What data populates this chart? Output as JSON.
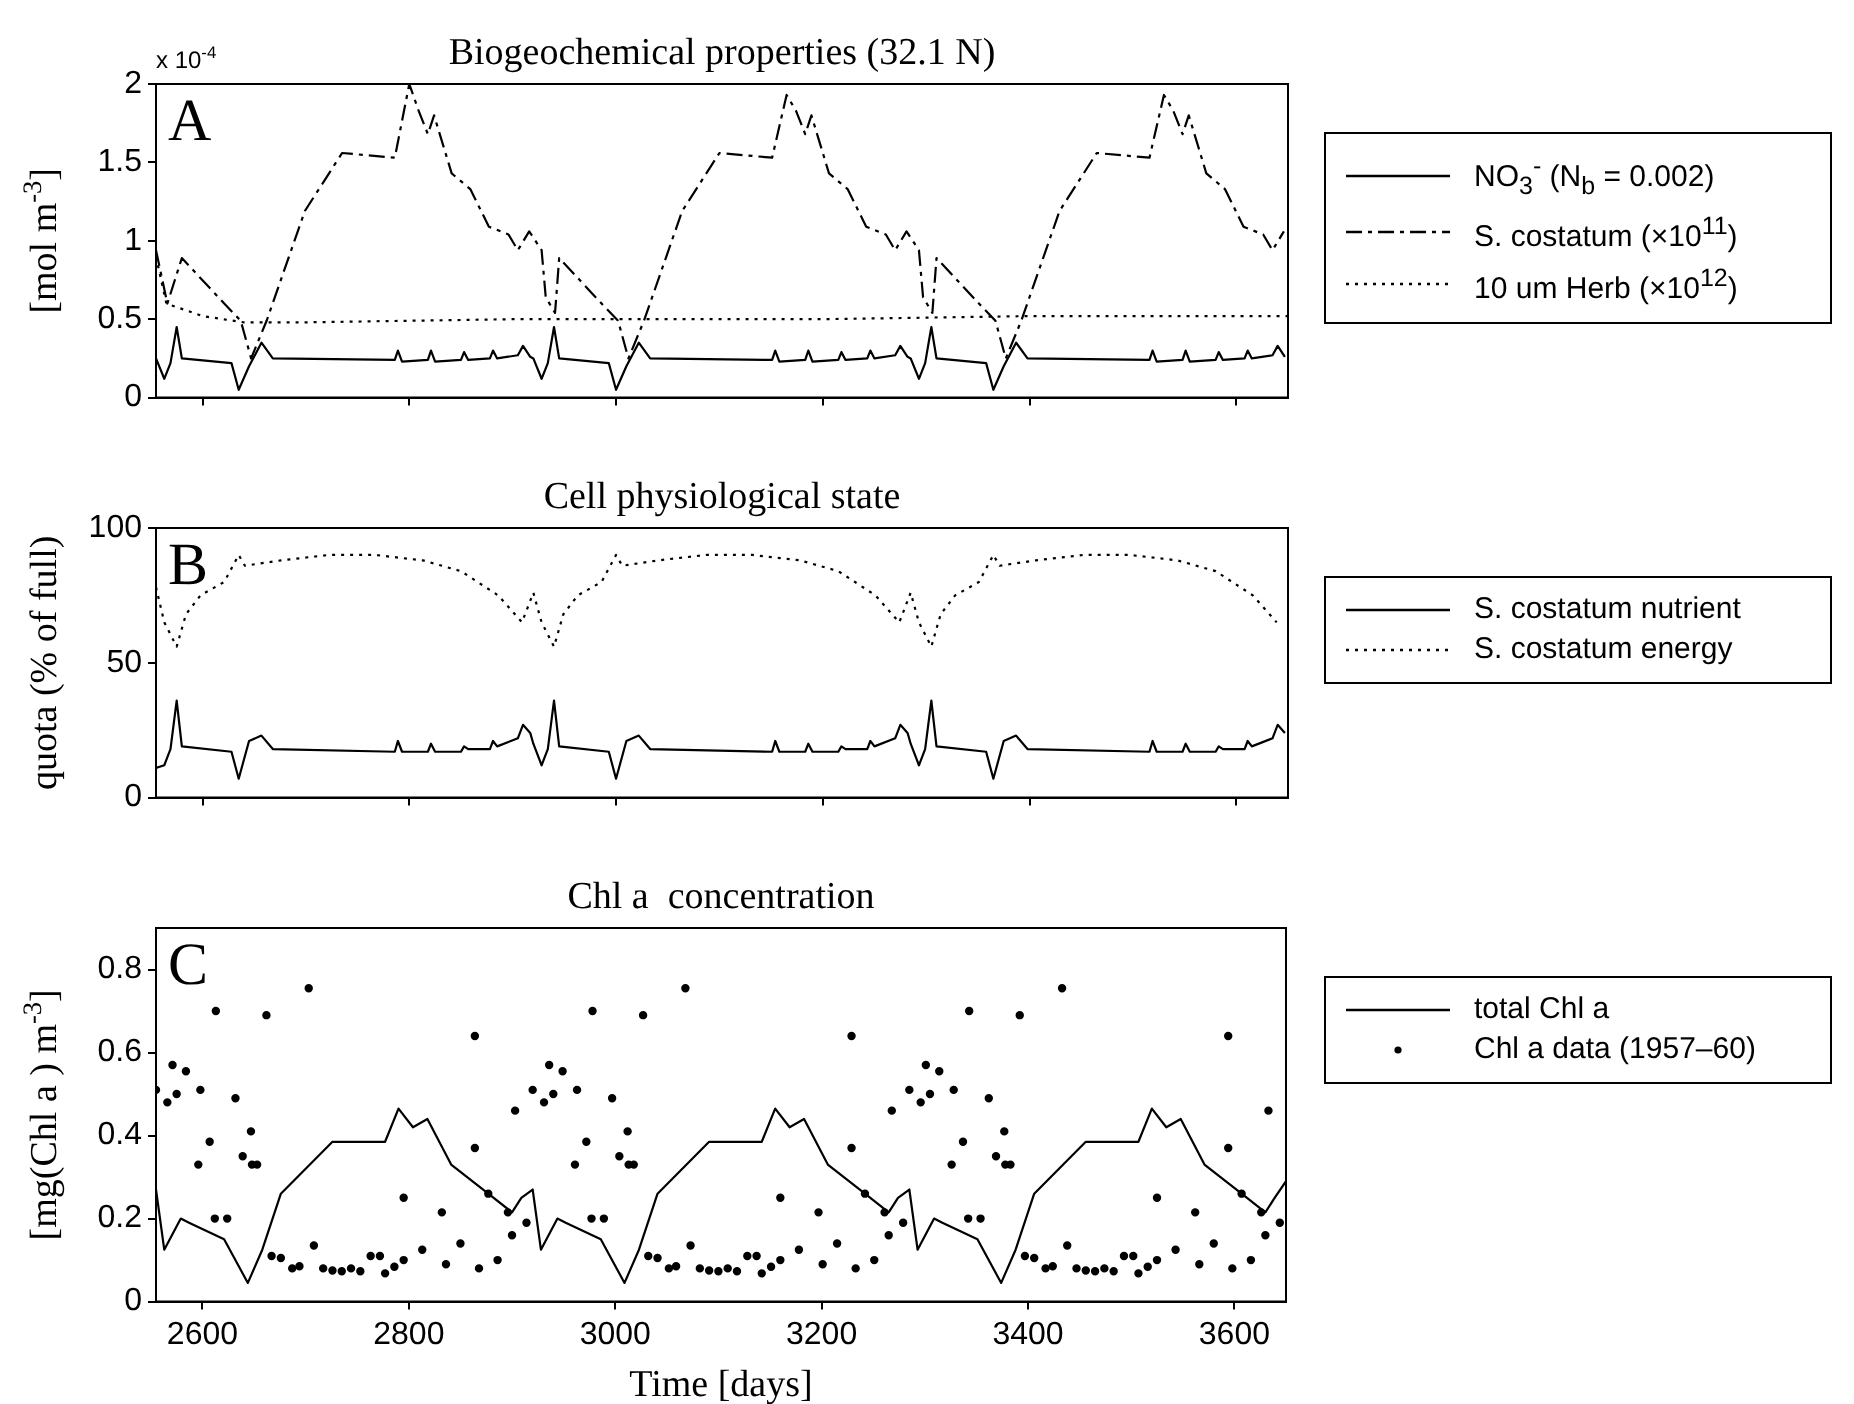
{
  "chart_data": [
    {
      "type": "line",
      "title": "Biogeochemical properties (32.1 N)",
      "ylabel": "[mol m$^{-3}$]",
      "annotations": [
        "A",
        "x 10$^{-4}$"
      ],
      "xlim": [
        2555,
        3650
      ],
      "xticks": [
        2600,
        2800,
        3000,
        3200,
        3400,
        3600
      ],
      "ylim": [
        0,
        2
      ],
      "yticks": [
        0,
        0.5,
        1,
        1.5,
        2
      ],
      "tick_labels": "y",
      "grid": false,
      "legend": "right",
      "series": [
        {
          "name": "NO$_{3}$$^{-}$ (N$_{b}$ = 0.002)",
          "color": "#000000",
          "line_style": "solid",
          "marker": "none",
          "x": [
            2555,
            2563,
            2569,
            2575,
            2580,
            2628,
            2635,
            2645,
            2657,
            2668,
            2786,
            2789,
            2793,
            2818,
            2821,
            2825,
            2850,
            2853,
            2857,
            2878,
            2881,
            2885,
            2905,
            2910,
            2917,
            2920,
            2928,
            2934,
            2940,
            2945,
            2993,
            3000,
            3010,
            3022,
            3033,
            3151,
            3154,
            3158,
            3183,
            3186,
            3190,
            3215,
            3218,
            3222,
            3243,
            3246,
            3250,
            3270,
            3275,
            3282,
            3285,
            3293,
            3299,
            3305,
            3310,
            3358,
            3365,
            3375,
            3387,
            3398,
            3516,
            3519,
            3523,
            3548,
            3551,
            3555,
            3580,
            3583,
            3587,
            3608,
            3611,
            3615,
            3635,
            3640,
            3647
          ],
          "values": [
            0.25,
            0.12,
            0.22,
            0.45,
            0.25,
            0.22,
            0.05,
            0.2,
            0.35,
            0.25,
            0.24,
            0.3,
            0.23,
            0.24,
            0.3,
            0.23,
            0.24,
            0.29,
            0.24,
            0.25,
            0.3,
            0.25,
            0.27,
            0.33,
            0.26,
            0.25,
            0.12,
            0.22,
            0.45,
            0.25,
            0.22,
            0.05,
            0.2,
            0.35,
            0.25,
            0.24,
            0.3,
            0.23,
            0.24,
            0.3,
            0.23,
            0.24,
            0.29,
            0.24,
            0.25,
            0.3,
            0.25,
            0.27,
            0.33,
            0.26,
            0.25,
            0.12,
            0.22,
            0.45,
            0.25,
            0.22,
            0.05,
            0.2,
            0.35,
            0.25,
            0.24,
            0.3,
            0.23,
            0.24,
            0.3,
            0.23,
            0.24,
            0.29,
            0.24,
            0.25,
            0.3,
            0.25,
            0.27,
            0.33,
            0.26
          ]
        },
        {
          "name": "S. costatum (×10$^{11}$)",
          "color": "#000000",
          "line_style": "dashed",
          "marker": "none",
          "x": [
            2555,
            2566,
            2580,
            2621,
            2637,
            2647,
            2662,
            2699,
            2735,
            2786,
            2800,
            2809,
            2818,
            2824,
            2841,
            2859,
            2877,
            2896,
            2905,
            2916,
            2928,
            2932,
            2941,
            2945,
            2986,
            3002,
            3012,
            3027,
            3064,
            3100,
            3151,
            3165,
            3174,
            3183,
            3189,
            3206,
            3224,
            3242,
            3261,
            3270,
            3281,
            3293,
            3297,
            3306,
            3310,
            3351,
            3367,
            3377,
            3392,
            3429,
            3465,
            3516,
            3530,
            3539,
            3548,
            3554,
            3571,
            3589,
            3607,
            3626,
            3635,
            3646
          ],
          "values": [
            0.94,
            0.6,
            0.89,
            0.6,
            0.49,
            0.25,
            0.49,
            1.19,
            1.56,
            1.53,
            2.0,
            1.83,
            1.68,
            1.8,
            1.43,
            1.33,
            1.09,
            1.04,
            0.94,
            1.06,
            0.94,
            0.64,
            0.54,
            0.89,
            0.6,
            0.49,
            0.25,
            0.49,
            1.19,
            1.56,
            1.53,
            1.93,
            1.83,
            1.68,
            1.8,
            1.43,
            1.33,
            1.09,
            1.04,
            0.94,
            1.06,
            0.94,
            0.64,
            0.54,
            0.89,
            0.6,
            0.49,
            0.25,
            0.49,
            1.19,
            1.56,
            1.53,
            1.93,
            1.83,
            1.68,
            1.8,
            1.43,
            1.33,
            1.09,
            1.04,
            0.94,
            1.06
          ]
        },
        {
          "name": "10 um Herb (×10$^{12}$)",
          "color": "#000000",
          "line_style": "dotted",
          "marker": "none",
          "x": [
            2555,
            2565,
            2600,
            2640,
            2700,
            2900,
            3200,
            3400,
            3650
          ],
          "values": [
            0.9,
            0.6,
            0.52,
            0.48,
            0.48,
            0.5,
            0.5,
            0.52,
            0.52
          ]
        }
      ]
    },
    {
      "type": "line",
      "title": "Cell physiological state",
      "ylabel": "quota (% of full)",
      "annotations": [
        "B"
      ],
      "xlim": [
        2555,
        3650
      ],
      "xticks": [
        2600,
        2800,
        3000,
        3200,
        3400,
        3600
      ],
      "ylim": [
        0,
        100
      ],
      "yticks": [
        0,
        50,
        100
      ],
      "tick_labels": "y",
      "grid": false,
      "legend": "right",
      "series": [
        {
          "name": "S. costatum nutrient",
          "color": "#000000",
          "line_style": "solid",
          "marker": "none",
          "x": [
            2555,
            2563,
            2569,
            2575,
            2580,
            2628,
            2635,
            2645,
            2657,
            2668,
            2786,
            2789,
            2793,
            2818,
            2821,
            2825,
            2850,
            2853,
            2857,
            2878,
            2881,
            2885,
            2905,
            2910,
            2917,
            2920,
            2928,
            2934,
            2940,
            2945,
            2993,
            3000,
            3010,
            3022,
            3033,
            3151,
            3154,
            3158,
            3183,
            3186,
            3190,
            3215,
            3218,
            3222,
            3243,
            3246,
            3250,
            3270,
            3275,
            3282,
            3285,
            3293,
            3299,
            3305,
            3310,
            3358,
            3365,
            3375,
            3387,
            3398,
            3516,
            3519,
            3523,
            3548,
            3551,
            3555,
            3580,
            3583,
            3587,
            3608,
            3611,
            3615,
            3635,
            3640,
            3647
          ],
          "values": [
            11,
            12,
            18,
            36,
            19,
            17,
            7,
            21,
            23,
            18,
            17,
            21,
            17,
            17,
            20,
            17,
            17,
            19,
            18,
            18,
            21,
            19,
            22,
            27,
            24,
            20,
            12,
            18,
            36,
            19,
            17,
            7,
            21,
            23,
            18,
            17,
            21,
            17,
            17,
            20,
            17,
            17,
            19,
            18,
            18,
            21,
            19,
            22,
            27,
            24,
            20,
            12,
            18,
            36,
            19,
            17,
            7,
            21,
            23,
            18,
            17,
            21,
            17,
            17,
            20,
            17,
            17,
            19,
            18,
            18,
            21,
            19,
            22,
            27,
            24
          ]
        },
        {
          "name": "S. costatum energy",
          "color": "#000000",
          "line_style": "dotted",
          "marker": "none",
          "x": [
            2555,
            2563,
            2575,
            2584,
            2598,
            2621,
            2635,
            2641,
            2676,
            2722,
            2767,
            2813,
            2850,
            2886,
            2909,
            2920,
            2928,
            2940,
            2949,
            2963,
            2986,
            3000,
            3006,
            3041,
            3087,
            3132,
            3178,
            3215,
            3251,
            3274,
            3285,
            3293,
            3305,
            3314,
            3328,
            3351,
            3365,
            3371,
            3406,
            3452,
            3497,
            3543,
            3580,
            3616,
            3639
          ],
          "values": [
            78,
            65,
            56,
            68,
            75,
            80,
            90,
            86,
            88,
            90,
            90,
            88,
            84,
            75,
            65,
            76,
            65,
            56,
            68,
            75,
            80,
            90,
            86,
            88,
            90,
            90,
            88,
            84,
            75,
            65,
            76,
            65,
            56,
            68,
            75,
            80,
            90,
            86,
            88,
            90,
            90,
            88,
            84,
            75,
            65
          ]
        }
      ]
    },
    {
      "type": "line",
      "title": "Chl a  concentration",
      "ylabel": "[mg(Chl a ) m$^{-3}$]",
      "xlabel": "Time [days]",
      "annotations": [
        "C"
      ],
      "xlim": [
        2555,
        3650
      ],
      "xticks": [
        2600,
        2800,
        3000,
        3200,
        3400,
        3600
      ],
      "ylim": [
        0,
        0.9
      ],
      "yticks": [
        0,
        0.2,
        0.4,
        0.6,
        0.8
      ],
      "grid": false,
      "legend": "right",
      "series": [
        {
          "name": "total Chl a",
          "color": "#000000",
          "line_style": "solid",
          "marker": "none",
          "x": [
            2555,
            2563,
            2579,
            2587,
            2621,
            2644,
            2658,
            2676,
            2726,
            2777,
            2790,
            2804,
            2818,
            2841,
            2877,
            2900,
            2909,
            2920,
            2928,
            2944,
            2952,
            2986,
            3009,
            3023,
            3041,
            3091,
            3142,
            3155,
            3169,
            3183,
            3206,
            3242,
            3265,
            3274,
            3285,
            3293,
            3309,
            3317,
            3351,
            3374,
            3388,
            3406,
            3456,
            3507,
            3520,
            3534,
            3548,
            3571,
            3607,
            3630,
            3639,
            3650
          ],
          "values": [
            0.27,
            0.125,
            0.2,
            0.19,
            0.15,
            0.045,
            0.125,
            0.26,
            0.385,
            0.385,
            0.465,
            0.42,
            0.44,
            0.33,
            0.26,
            0.215,
            0.25,
            0.27,
            0.125,
            0.2,
            0.19,
            0.15,
            0.045,
            0.125,
            0.26,
            0.385,
            0.385,
            0.465,
            0.42,
            0.44,
            0.33,
            0.26,
            0.215,
            0.25,
            0.27,
            0.125,
            0.2,
            0.19,
            0.15,
            0.045,
            0.125,
            0.26,
            0.385,
            0.385,
            0.465,
            0.42,
            0.44,
            0.33,
            0.26,
            0.215,
            0.25,
            0.29
          ]
        },
        {
          "name": "Chl a data (1957–60)",
          "type": "scatter",
          "color": "#000000",
          "marker": "circle",
          "x": [
            2555,
            2566,
            2571,
            2575,
            2584,
            2598,
            2596,
            2607,
            2613,
            2612,
            2624,
            2632,
            2639,
            2647,
            2648,
            2653,
            2662,
            2667,
            2676,
            2687,
            2694,
            2703,
            2708,
            2717,
            2726,
            2735,
            2744,
            2753,
            2763,
            2772,
            2777,
            2786,
            2795,
            2795,
            2813,
            2832,
            2836,
            2850,
            2868,
            2864,
            2864,
            2877,
            2886,
            2896,
            2900,
            2903,
            2914,
            2920,
            2931,
            2936,
            2940,
            2949,
            2963,
            2961,
            2972,
            2978,
            2977,
            2989,
            2997,
            3004,
            3012,
            3013,
            3018,
            3027,
            3032,
            3041,
            3052,
            3059,
            3068,
            3073,
            3082,
            3091,
            3100,
            3109,
            3118,
            3128,
            3137,
            3142,
            3151,
            3160,
            3160,
            3178,
            3197,
            3201,
            3215,
            3233,
            3229,
            3229,
            3242,
            3251,
            3261,
            3265,
            3268,
            3279,
            3285,
            3296,
            3301,
            3305,
            3314,
            3328,
            3326,
            3337,
            3343,
            3342,
            3354,
            3362,
            3369,
            3377,
            3378,
            3383,
            3392,
            3397,
            3406,
            3417,
            3424,
            3433,
            3438,
            3447,
            3456,
            3465,
            3474,
            3483,
            3493,
            3502,
            3507,
            3516,
            3525,
            3525,
            3543,
            3562,
            3566,
            3580,
            3598,
            3594,
            3594,
            3607,
            3616,
            3626,
            3630,
            3633,
            3644
          ],
          "values": [
            0.51,
            0.48,
            0.57,
            0.5,
            0.555,
            0.51,
            0.33,
            0.385,
            0.7,
            0.2,
            0.2,
            0.49,
            0.35,
            0.41,
            0.33,
            0.33,
            0.69,
            0.11,
            0.105,
            0.08,
            0.085,
            0.755,
            0.135,
            0.08,
            0.075,
            0.073,
            0.08,
            0.073,
            0.11,
            0.11,
            0.068,
            0.084,
            0.1,
            0.25,
            0.125,
            0.215,
            0.09,
            0.14,
            0.08,
            0.37,
            0.64,
            0.26,
            0.1,
            0.215,
            0.16,
            0.46,
            0.19,
            0.51,
            0.48,
            0.57,
            0.5,
            0.555,
            0.51,
            0.33,
            0.385,
            0.7,
            0.2,
            0.2,
            0.49,
            0.35,
            0.41,
            0.33,
            0.33,
            0.69,
            0.11,
            0.105,
            0.08,
            0.085,
            0.755,
            0.135,
            0.08,
            0.075,
            0.073,
            0.08,
            0.073,
            0.11,
            0.11,
            0.068,
            0.084,
            0.1,
            0.25,
            0.125,
            0.215,
            0.09,
            0.14,
            0.08,
            0.37,
            0.64,
            0.26,
            0.1,
            0.215,
            0.16,
            0.46,
            0.19,
            0.51,
            0.48,
            0.57,
            0.5,
            0.555,
            0.51,
            0.33,
            0.385,
            0.7,
            0.2,
            0.2,
            0.49,
            0.35,
            0.41,
            0.33,
            0.33,
            0.69,
            0.11,
            0.105,
            0.08,
            0.085,
            0.755,
            0.135,
            0.08,
            0.075,
            0.073,
            0.08,
            0.073,
            0.11,
            0.11,
            0.068,
            0.084,
            0.1,
            0.25,
            0.125,
            0.215,
            0.09,
            0.14,
            0.08,
            0.37,
            0.64,
            0.26,
            0.1,
            0.215,
            0.16,
            0.46,
            0.19
          ]
        }
      ]
    }
  ]
}
